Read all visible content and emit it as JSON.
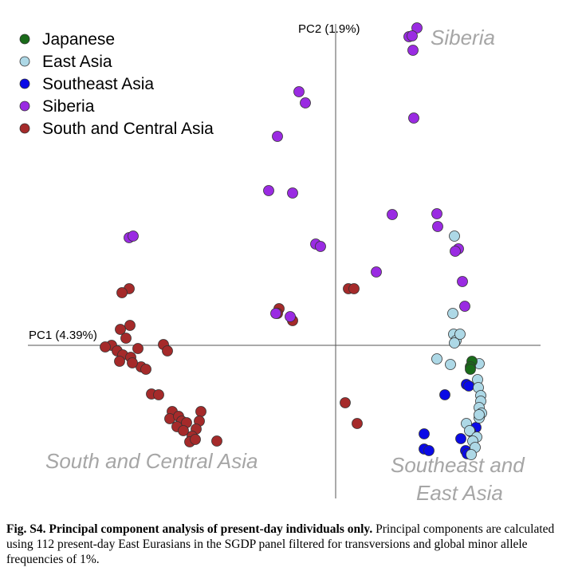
{
  "chart_data": {
    "type": "scatter",
    "xlabel": "PC1 (4.39%)",
    "ylabel": "PC2 (1.9%)",
    "grid": false,
    "legend_position": "top-left",
    "annotations": [
      "Siberia",
      "South and Central Asia",
      "Southeast and",
      "East Asia"
    ],
    "series": [
      {
        "name": "Japanese",
        "color": "#1a6b1a",
        "points": [
          [
            1.71,
            -0.2
          ],
          [
            1.69,
            -0.27
          ],
          [
            1.69,
            -0.3
          ]
        ]
      },
      {
        "name": "East Asia",
        "color": "#add8e6",
        "points": [
          [
            1.49,
            1.37
          ],
          [
            1.47,
            0.4
          ],
          [
            1.48,
            0.14
          ],
          [
            1.51,
            0.06
          ],
          [
            1.56,
            0.14
          ],
          [
            1.49,
            0.03
          ],
          [
            1.27,
            -0.17
          ],
          [
            1.44,
            -0.24
          ],
          [
            1.8,
            -0.23
          ],
          [
            1.78,
            -0.43
          ],
          [
            1.79,
            -0.53
          ],
          [
            1.82,
            -0.63
          ],
          [
            1.82,
            -0.7
          ],
          [
            1.8,
            -0.78
          ],
          [
            1.83,
            -0.85
          ],
          [
            1.8,
            -0.91
          ],
          [
            1.64,
            -0.98
          ],
          [
            1.68,
            -1.07
          ],
          [
            1.77,
            -1.15
          ],
          [
            1.72,
            -1.2
          ],
          [
            1.75,
            -1.28
          ],
          [
            1.7,
            -1.37
          ],
          [
            1.8,
            -0.87
          ]
        ]
      },
      {
        "name": "Southeast Asia",
        "color": "#0a0ae6",
        "points": [
          [
            1.37,
            -0.62
          ],
          [
            1.64,
            -0.49
          ],
          [
            1.67,
            -0.51
          ],
          [
            1.11,
            -1.11
          ],
          [
            1.57,
            -1.17
          ],
          [
            1.76,
            -1.03
          ],
          [
            1.11,
            -1.3
          ],
          [
            1.17,
            -1.32
          ],
          [
            1.63,
            -1.32
          ],
          [
            1.65,
            -1.36
          ],
          [
            1.69,
            -1.08
          ]
        ]
      },
      {
        "name": "Siberia",
        "color": "#9a2be2",
        "points": [
          [
            1.02,
            3.98
          ],
          [
            0.92,
            3.87
          ],
          [
            0.96,
            3.88
          ],
          [
            0.97,
            3.7
          ],
          [
            0.98,
            2.85
          ],
          [
            -0.46,
            3.18
          ],
          [
            -0.38,
            3.04
          ],
          [
            -0.73,
            2.62
          ],
          [
            -0.84,
            1.94
          ],
          [
            -0.54,
            1.91
          ],
          [
            -2.59,
            1.35
          ],
          [
            -2.54,
            1.37
          ],
          [
            -0.25,
            1.27
          ],
          [
            -0.19,
            1.24
          ],
          [
            0.71,
            1.64
          ],
          [
            1.27,
            1.65
          ],
          [
            1.28,
            1.49
          ],
          [
            0.51,
            0.92
          ],
          [
            1.59,
            0.8
          ],
          [
            1.62,
            0.49
          ],
          [
            1.54,
            1.21
          ],
          [
            1.5,
            1.18
          ],
          [
            -0.75,
            0.4
          ],
          [
            -0.57,
            0.36
          ]
        ]
      },
      {
        "name": "South and Central Asia",
        "color": "#a52a2a",
        "points": [
          [
            -2.59,
            0.71
          ],
          [
            -2.68,
            0.66
          ],
          [
            -2.58,
            0.25
          ],
          [
            -2.7,
            0.2
          ],
          [
            -2.63,
            0.09
          ],
          [
            -2.81,
            0.0
          ],
          [
            -2.89,
            -0.02
          ],
          [
            -2.74,
            -0.07
          ],
          [
            -2.67,
            -0.12
          ],
          [
            -2.71,
            -0.2
          ],
          [
            -2.57,
            -0.15
          ],
          [
            -2.48,
            -0.04
          ],
          [
            -2.16,
            0.01
          ],
          [
            -2.11,
            -0.07
          ],
          [
            -2.44,
            -0.27
          ],
          [
            -2.55,
            -0.22
          ],
          [
            -2.38,
            -0.3
          ],
          [
            -2.31,
            -0.61
          ],
          [
            -2.22,
            -0.62
          ],
          [
            -2.05,
            -0.83
          ],
          [
            -2.08,
            -0.92
          ],
          [
            -1.97,
            -0.89
          ],
          [
            -1.93,
            -0.95
          ],
          [
            -1.69,
            -0.83
          ],
          [
            -1.71,
            -0.95
          ],
          [
            -1.99,
            -1.02
          ],
          [
            -1.87,
            -0.97
          ],
          [
            -1.75,
            -1.05
          ],
          [
            -1.8,
            -1.14
          ],
          [
            -1.83,
            -1.21
          ],
          [
            -1.76,
            -1.18
          ],
          [
            -1.49,
            -1.2
          ],
          [
            -1.91,
            -1.07
          ],
          [
            0.16,
            0.71
          ],
          [
            0.23,
            0.71
          ],
          [
            -0.71,
            0.46
          ],
          [
            -0.73,
            0.4
          ],
          [
            -0.54,
            0.31
          ],
          [
            0.12,
            -0.72
          ],
          [
            0.27,
            -0.98
          ]
        ]
      }
    ]
  },
  "caption": {
    "bold": "Fig. S4. Principal component analysis of present-day individuals only.",
    "text": " Principal components are calculated using 112 present-day East Eurasians in the SGDP panel filtered for transversions and global minor allele frequencies of 1%."
  }
}
